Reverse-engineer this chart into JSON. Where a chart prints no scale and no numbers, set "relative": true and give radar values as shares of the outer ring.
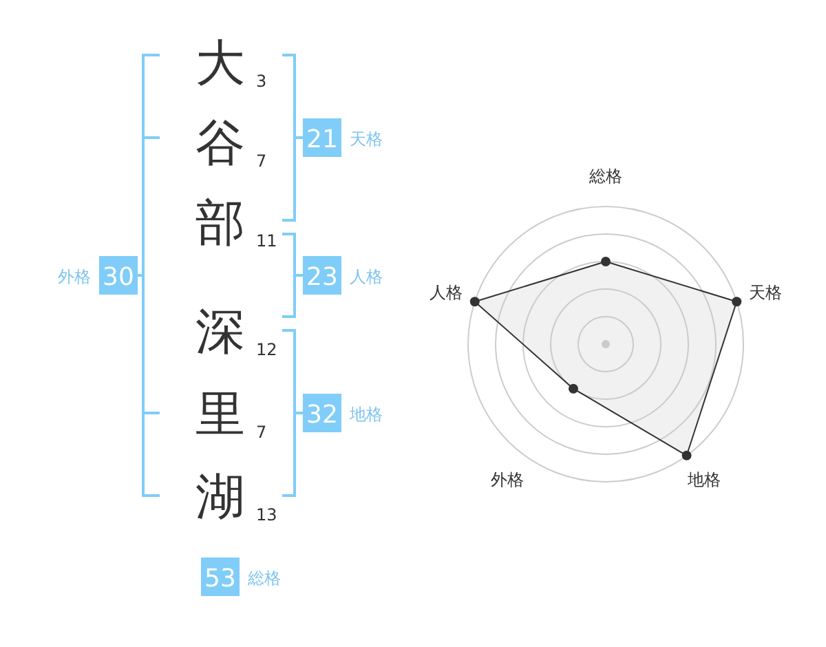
{
  "chart_data": [
    {
      "type": "other",
      "annotations": [
        "大",
        "谷",
        "部",
        "深",
        "里",
        "湖",
        "3",
        "7",
        "11",
        "12",
        "7",
        "13",
        "21",
        "天格",
        "23",
        "人格",
        "32",
        "地格",
        "30",
        "外格",
        "53",
        "総格"
      ]
    },
    {
      "type": "radar",
      "relative": true,
      "grid": true,
      "marker": "circle",
      "categories": [
        "総格",
        "天格",
        "地格",
        "外格",
        "人格"
      ],
      "series": [
        {
          "color": "#333333",
          "values": [
            0.6,
            1.0,
            1.0,
            0.4,
            1.0
          ]
        }
      ]
    }
  ]
}
